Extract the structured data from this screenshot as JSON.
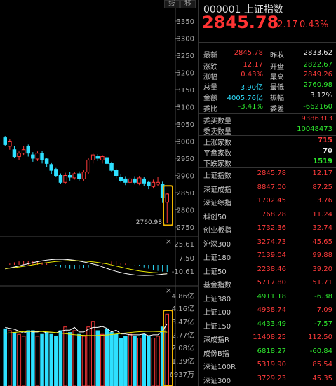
{
  "toolbar": {
    "btn1": "线",
    "btn2": "移"
  },
  "header": {
    "title": "000001 上证指数",
    "price": "2845.78",
    "change": "12.17",
    "change_pct": "0.43%"
  },
  "quote": {
    "rows": [
      {
        "l1": "最新",
        "v1": "2845.78",
        "c1": "red",
        "l2": "昨收",
        "v2": "2833.62",
        "c2": "white"
      },
      {
        "l1": "涨跌",
        "v1": "12.17",
        "c1": "red",
        "l2": "开盘",
        "v2": "2822.67",
        "c2": "green"
      },
      {
        "l1": "涨幅",
        "v1": "0.43%",
        "c1": "red",
        "l2": "最高",
        "v2": "2849.26",
        "c2": "red"
      },
      {
        "l1": "总量",
        "v1": "3.90亿",
        "c1": "cyan",
        "l2": "最低",
        "v2": "2760.98",
        "c2": "green"
      },
      {
        "l1": "金额",
        "v1": "4005.76亿",
        "c1": "cyan",
        "l2": "振幅",
        "v2": "3.12%",
        "c2": "white"
      },
      {
        "l1": "委比",
        "v1": "-3.41%",
        "c1": "green",
        "l2": "委差",
        "v2": "-662160",
        "c2": "green"
      }
    ],
    "orders": [
      {
        "label": "委买数量",
        "value": "9386313",
        "color": "red"
      },
      {
        "label": "委卖数量",
        "value": "10048473",
        "color": "green"
      }
    ],
    "breadth": [
      {
        "label": "上涨家数",
        "value": "715",
        "color": "red"
      },
      {
        "label": "平盘家数",
        "value": "70",
        "color": "white"
      },
      {
        "label": "下跌家数",
        "value": "1519",
        "color": "green"
      }
    ]
  },
  "indices": [
    {
      "name": "上证指数",
      "price": "2845.78",
      "chg": "12.17",
      "color": "red"
    },
    {
      "name": "深证成指",
      "price": "8847.00",
      "chg": "87.25",
      "color": "red"
    },
    {
      "name": "深证综指",
      "price": "1702.45",
      "chg": "3.76",
      "color": "red"
    },
    {
      "name": "科创50",
      "price": "768.28",
      "chg": "11.24",
      "color": "red"
    },
    {
      "name": "创业板指",
      "price": "1732.36",
      "chg": "32.74",
      "color": "red"
    },
    {
      "name": "沪深300",
      "price": "3274.73",
      "chg": "45.65",
      "color": "red"
    },
    {
      "name": "上证180",
      "price": "7139.04",
      "chg": "99.88",
      "color": "red"
    },
    {
      "name": "上证50",
      "price": "2238.46",
      "chg": "39.20",
      "color": "red"
    },
    {
      "name": "基金指数",
      "price": "5717.80",
      "chg": "51.71",
      "color": "red"
    },
    {
      "name": "上证380",
      "price": "4911.18",
      "chg": "-6.38",
      "color": "green"
    },
    {
      "name": "上证100",
      "price": "4938.74",
      "chg": "7.09",
      "color": "red"
    },
    {
      "name": "上证150",
      "price": "4433.49",
      "chg": "-7.57",
      "color": "green"
    },
    {
      "name": "深成指R",
      "price": "11408.25",
      "chg": "112.50",
      "color": "red"
    },
    {
      "name": "成份B指",
      "price": "6818.27",
      "chg": "-60.84",
      "color": "green"
    },
    {
      "name": "深证100R",
      "price": "5319.90",
      "chg": "85.54",
      "color": "red"
    },
    {
      "name": "深证300",
      "price": "3729.23",
      "chg": "45.35",
      "color": "red"
    }
  ],
  "price_axis": [
    "3350",
    "3300",
    "3250",
    "3200",
    "3150",
    "3100",
    "3050",
    "3000",
    "2950",
    "2900",
    "2850",
    "2800",
    "2750"
  ],
  "low_marker": "2760.98",
  "macd_axis": [
    "25.61",
    "7.50",
    "-10.61"
  ],
  "vol_axis": [
    "4.86亿",
    "4.16亿",
    "3.47亿",
    "2.77亿",
    "2.08亿",
    "1.39亿",
    "6937万"
  ],
  "close_symbol": "×",
  "colors": {
    "up": "#ff3b3b",
    "down": "#2ee0ff",
    "ma5": "#ffffff",
    "ma10": "#e6e600",
    "ma20": "#ff66ff"
  }
}
